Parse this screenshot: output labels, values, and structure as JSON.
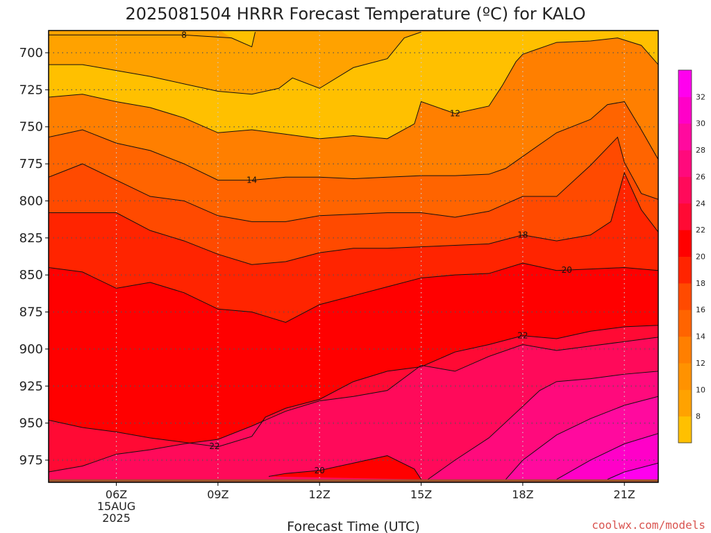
{
  "title": "2025081504 HRRR Forecast Temperature (ºC) for KALO",
  "credit": "coolwx.com/models",
  "chart_data": {
    "type": "contour",
    "title": "2025081504 HRRR Forecast Temperature (ºC) for KALO",
    "xlabel": "Forecast Time (UTC)",
    "ylabel": "",
    "x_ticks": [
      {
        "hour": 6,
        "label": "06Z",
        "sub": [
          "15AUG",
          "2025"
        ]
      },
      {
        "hour": 9,
        "label": "09Z"
      },
      {
        "hour": 12,
        "label": "12Z"
      },
      {
        "hour": 15,
        "label": "15Z"
      },
      {
        "hour": 18,
        "label": "18Z"
      },
      {
        "hour": 21,
        "label": "21Z"
      }
    ],
    "xlim": [
      4,
      22
    ],
    "y_ticks": [
      700,
      725,
      750,
      775,
      800,
      825,
      850,
      875,
      900,
      925,
      950,
      975
    ],
    "ylim": [
      685,
      990
    ],
    "y_inverted": true,
    "grid": true,
    "colorbar": {
      "levels": [
        6,
        8,
        10,
        12,
        14,
        16,
        18,
        20,
        22,
        24,
        26,
        28,
        30,
        32,
        34
      ],
      "tick_labels": [
        8,
        10,
        12,
        14,
        16,
        18,
        20,
        22,
        24,
        26,
        28,
        30,
        32
      ],
      "colors": [
        "#ffc000",
        "#ffa200",
        "#ff9200",
        "#ff7f00",
        "#ff6400",
        "#ff4a00",
        "#ff2400",
        "#ff0000",
        "#ff0a34",
        "#ff0a5a",
        "#ff0a7c",
        "#ff0a9e",
        "#ff00c8",
        "#ff00ee"
      ]
    },
    "ground_color": "#a0522d",
    "contours": [
      {
        "value": 8,
        "points": [
          [
            4,
            688
          ],
          [
            6,
            688
          ],
          [
            8,
            688
          ],
          [
            9.4,
            690
          ],
          [
            10,
            696
          ],
          [
            10.1,
            686
          ]
        ],
        "label": {
          "hour": 8,
          "text": "8"
        }
      },
      {
        "value": 10,
        "points": [
          [
            4,
            708
          ],
          [
            5,
            708
          ],
          [
            6,
            712
          ],
          [
            7,
            716
          ],
          [
            8,
            721
          ],
          [
            9,
            726
          ],
          [
            10,
            728
          ],
          [
            10.8,
            724
          ],
          [
            11.2,
            717
          ],
          [
            12,
            724
          ],
          [
            13,
            710
          ],
          [
            14,
            704
          ],
          [
            14.5,
            690
          ],
          [
            15,
            686
          ]
        ]
      },
      {
        "value": 12,
        "points": [
          [
            4,
            730
          ],
          [
            5,
            728
          ],
          [
            6,
            733
          ],
          [
            7,
            737
          ],
          [
            8,
            744
          ],
          [
            9,
            754
          ],
          [
            10,
            752
          ],
          [
            11,
            755
          ],
          [
            12,
            758
          ],
          [
            13,
            756
          ],
          [
            14,
            758
          ],
          [
            14.8,
            748
          ],
          [
            15,
            733
          ],
          [
            16,
            741
          ],
          [
            17,
            736
          ],
          [
            17.4,
            722
          ],
          [
            17.8,
            706
          ],
          [
            18,
            701
          ],
          [
            19,
            693
          ],
          [
            20,
            692
          ],
          [
            20.8,
            690
          ],
          [
            21.5,
            695
          ],
          [
            22,
            708
          ]
        ],
        "label": {
          "hour": 16,
          "text": "12"
        }
      },
      {
        "value": 14,
        "points": [
          [
            4,
            757
          ],
          [
            5,
            752
          ],
          [
            6,
            761
          ],
          [
            7,
            766
          ],
          [
            8,
            775
          ],
          [
            9,
            786
          ],
          [
            10,
            786
          ],
          [
            11,
            784
          ],
          [
            12,
            784
          ],
          [
            13,
            785
          ],
          [
            14,
            784
          ],
          [
            15,
            783
          ],
          [
            16,
            783
          ],
          [
            17,
            782
          ],
          [
            17.5,
            778
          ],
          [
            18,
            770
          ],
          [
            19,
            754
          ],
          [
            20,
            745
          ],
          [
            20.5,
            735
          ],
          [
            21,
            733
          ],
          [
            21.5,
            752
          ],
          [
            22,
            772
          ]
        ],
        "label": {
          "hour": 10,
          "text": "14"
        }
      },
      {
        "value": 16,
        "points": [
          [
            4,
            784
          ],
          [
            5,
            775
          ],
          [
            6,
            786
          ],
          [
            7,
            797
          ],
          [
            8,
            800
          ],
          [
            9,
            810
          ],
          [
            10,
            814
          ],
          [
            11,
            814
          ],
          [
            12,
            810
          ],
          [
            13,
            809
          ],
          [
            14,
            808
          ],
          [
            15,
            808
          ],
          [
            16,
            811
          ],
          [
            17,
            807
          ],
          [
            18,
            797
          ],
          [
            19,
            797
          ],
          [
            20,
            776
          ],
          [
            20.8,
            757
          ],
          [
            21,
            774
          ],
          [
            21.5,
            795
          ],
          [
            22,
            799
          ]
        ]
      },
      {
        "value": 18,
        "points": [
          [
            4,
            808
          ],
          [
            5,
            808
          ],
          [
            6,
            808
          ],
          [
            7,
            820
          ],
          [
            8,
            827
          ],
          [
            9,
            836
          ],
          [
            10,
            843
          ],
          [
            11,
            841
          ],
          [
            12,
            835
          ],
          [
            13,
            832
          ],
          [
            14,
            832
          ],
          [
            15,
            831
          ],
          [
            16,
            830
          ],
          [
            17,
            829
          ],
          [
            18,
            823
          ],
          [
            19,
            827
          ],
          [
            20,
            823
          ],
          [
            20.6,
            814
          ],
          [
            21,
            781
          ],
          [
            21.5,
            806
          ],
          [
            22,
            821
          ]
        ],
        "label": {
          "hour": 18,
          "text": "18"
        }
      },
      {
        "value": 20,
        "points": [
          [
            4,
            845
          ],
          [
            5,
            848
          ],
          [
            6,
            859
          ],
          [
            7,
            855
          ],
          [
            8,
            862
          ],
          [
            9,
            873
          ],
          [
            10,
            875
          ],
          [
            11,
            882
          ],
          [
            12,
            870
          ],
          [
            13,
            864
          ],
          [
            14,
            858
          ],
          [
            15,
            852
          ],
          [
            16,
            850
          ],
          [
            17,
            849
          ],
          [
            18,
            842
          ],
          [
            19,
            847
          ],
          [
            20,
            846
          ],
          [
            21,
            845
          ],
          [
            22,
            847
          ]
        ],
        "label": {
          "hour": 19.3,
          "text": "20"
        }
      },
      {
        "value": 22,
        "points": [
          [
            4,
            948
          ],
          [
            5,
            953
          ],
          [
            6,
            956
          ],
          [
            7,
            960
          ],
          [
            8,
            963
          ],
          [
            9,
            966
          ],
          [
            10,
            959
          ],
          [
            10.4,
            946
          ],
          [
            11,
            940
          ],
          [
            12,
            934
          ],
          [
            13,
            922
          ],
          [
            14,
            915
          ],
          [
            15,
            912
          ],
          [
            16,
            902
          ],
          [
            17,
            897
          ],
          [
            18,
            891
          ],
          [
            19,
            893
          ],
          [
            20,
            888
          ],
          [
            21,
            885
          ],
          [
            22,
            884
          ]
        ],
        "label": {
          "hour": 18,
          "text": "22"
        }
      },
      {
        "value": 22,
        "points": [
          [
            4,
            948
          ],
          [
            9,
            966
          ]
        ],
        "label": {
          "hour": 8.9,
          "text": "22"
        }
      },
      {
        "value": 24,
        "points": [
          [
            4,
            983
          ],
          [
            5,
            979
          ],
          [
            6,
            971
          ],
          [
            7,
            968
          ],
          [
            8,
            964
          ],
          [
            9,
            961
          ],
          [
            10,
            952
          ],
          [
            11,
            942
          ],
          [
            12,
            935
          ],
          [
            13,
            932
          ],
          [
            14,
            928
          ],
          [
            15,
            911
          ],
          [
            16,
            915
          ],
          [
            17,
            905
          ],
          [
            18,
            897
          ],
          [
            19,
            901
          ],
          [
            20,
            898
          ],
          [
            21,
            895
          ],
          [
            22,
            892
          ]
        ]
      },
      {
        "value": 20,
        "points": [
          [
            10.5,
            986
          ],
          [
            11,
            984
          ],
          [
            12,
            982
          ],
          [
            13,
            977
          ],
          [
            14,
            972
          ],
          [
            14.8,
            981
          ],
          [
            15,
            988
          ]
        ],
        "label": {
          "hour": 12,
          "text": "20"
        }
      },
      {
        "value": 26,
        "points": [
          [
            15.2,
            988
          ],
          [
            16,
            975
          ],
          [
            17,
            960
          ],
          [
            17.8,
            943
          ],
          [
            18.5,
            928
          ],
          [
            19,
            922
          ],
          [
            20,
            920
          ],
          [
            21,
            917
          ],
          [
            22,
            915
          ]
        ]
      },
      {
        "value": 28,
        "points": [
          [
            17.5,
            988
          ],
          [
            18,
            975
          ],
          [
            19,
            958
          ],
          [
            20,
            947
          ],
          [
            21,
            938
          ],
          [
            22,
            932
          ]
        ]
      },
      {
        "value": 30,
        "points": [
          [
            19,
            988
          ],
          [
            20,
            975
          ],
          [
            21,
            964
          ],
          [
            22,
            957
          ]
        ]
      },
      {
        "value": 32,
        "points": [
          [
            20.5,
            988
          ],
          [
            21,
            983
          ],
          [
            22,
            977
          ]
        ]
      }
    ]
  }
}
